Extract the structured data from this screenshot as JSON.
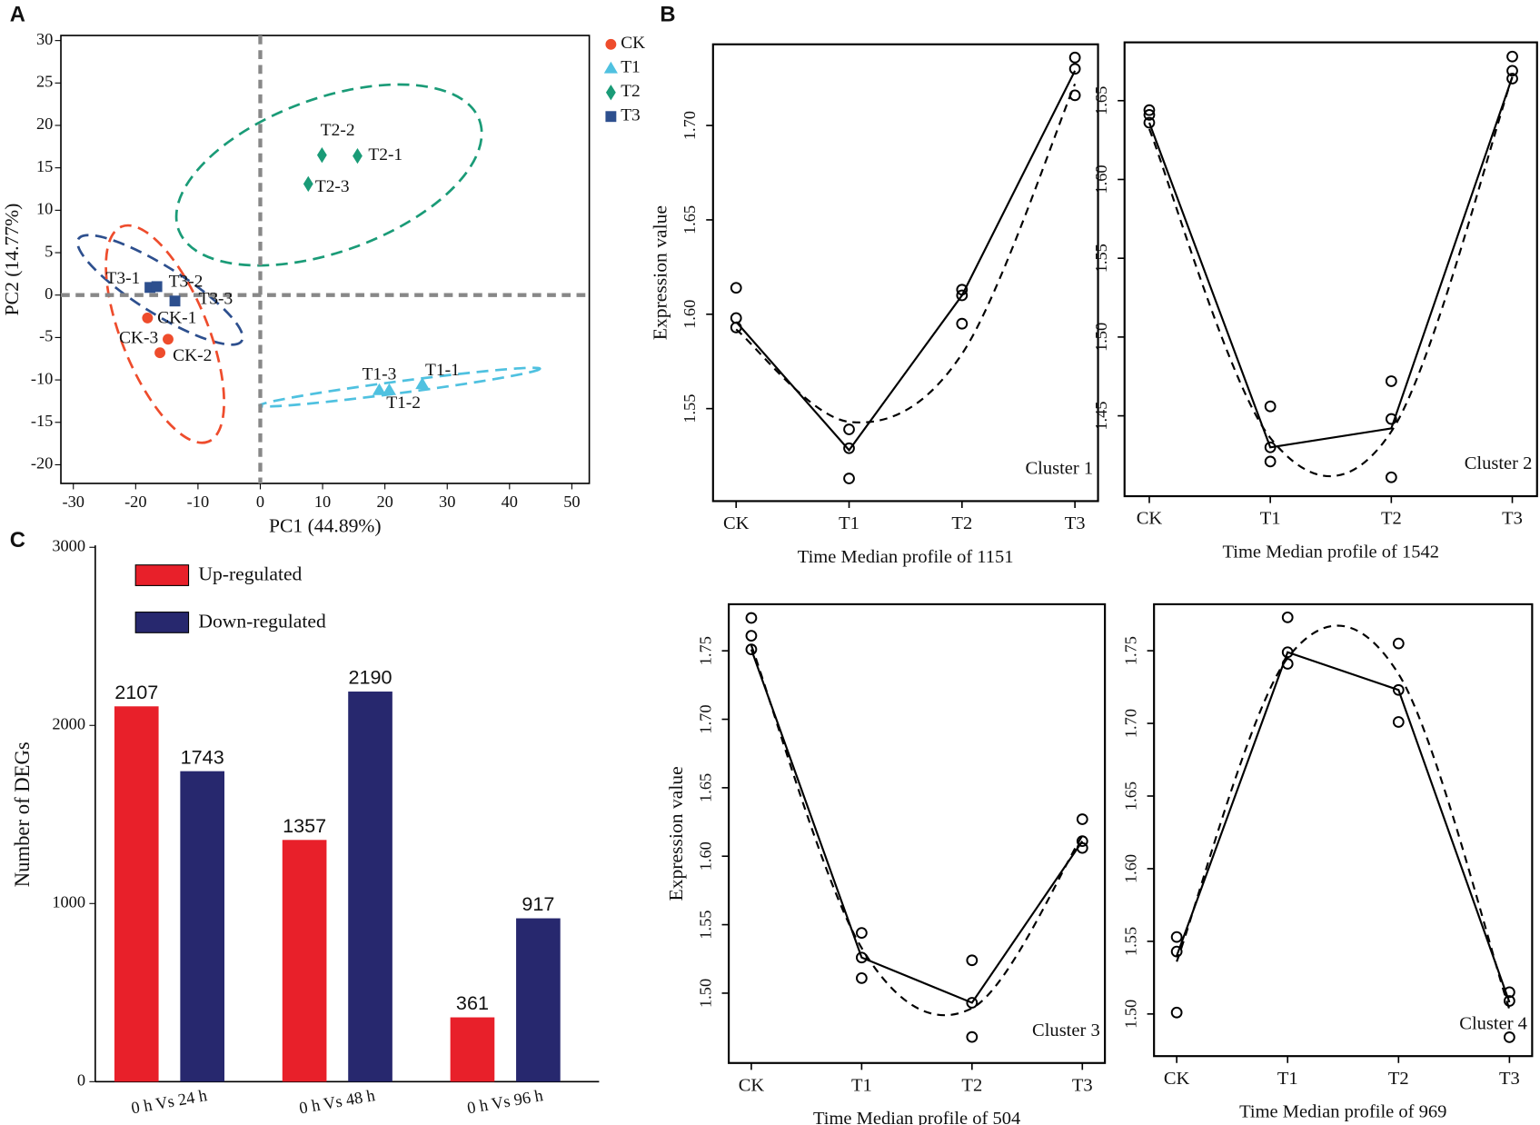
{
  "chart_data": [
    {
      "type": "scatter",
      "panel": "A",
      "xlabel": "PC1 (44.89%)",
      "ylabel": "PC2 (14.77%)",
      "xlim": [
        -32,
        52.8
      ],
      "ylim": [
        -22.2,
        30.6
      ],
      "xticks": [
        -30,
        -20,
        -10,
        0,
        10,
        20,
        30,
        40,
        50
      ],
      "yticks": [
        -20,
        -15,
        -10,
        -5,
        0,
        5,
        10,
        15,
        20,
        25,
        30
      ],
      "legend": "outside-right",
      "series": [
        {
          "name": "CK",
          "color": "#ee4c2c",
          "marker": "circle",
          "x": [
            -18.1,
            -16.1,
            -14.8
          ],
          "values": [
            -2.7,
            -6.8,
            -5.2
          ],
          "labels": [
            "CK-1",
            "CK-2",
            "CK-3"
          ]
        },
        {
          "name": "T1",
          "color": "#4fc1e0",
          "marker": "triangle",
          "x": [
            26,
            20.7,
            19.1
          ],
          "values": [
            -10.5,
            -11.2,
            -11.2
          ],
          "labels": [
            "T1-1",
            "T1-2",
            "T1-3"
          ]
        },
        {
          "name": "T2",
          "color": "#1a9b77",
          "marker": "diamond",
          "x": [
            15.6,
            9.9,
            7.7
          ],
          "values": [
            16.4,
            16.5,
            13.1
          ],
          "labels": [
            "T2-1",
            "T2-2",
            "T2-3"
          ]
        },
        {
          "name": "T3",
          "color": "#2d4f8e",
          "marker": "square",
          "x": [
            -17.7,
            -16.6,
            -13.7
          ],
          "values": [
            0.9,
            1.0,
            -0.7
          ],
          "labels": [
            "T3-1",
            "T3-2",
            "T3-3"
          ]
        }
      ]
    },
    {
      "type": "line",
      "panel": "B",
      "annotation": "Cluster 1",
      "xlabel": "Time Median profile of 1151",
      "ylabel": "Expression value",
      "categories": [
        "CK",
        "T1",
        "T2",
        "T3"
      ],
      "ylim": [
        1.501,
        1.743
      ],
      "yticks": [
        1.55,
        {
          "value": 1.6,
          "label": "1.60"
        },
        1.65,
        {
          "value": 1.7,
          "label": "1.70"
        }
      ],
      "series": [
        {
          "color": "#000000",
          "style": "solid",
          "values": [
            1.596,
            1.528,
            1.61,
            1.729
          ]
        },
        {
          "color": "#000000",
          "style": "dashed",
          "smooth": true,
          "values": [
            1.592,
            1.543,
            1.579,
            1.722
          ]
        }
      ],
      "replicates": [
        [
          1.614,
          1.598,
          1.593
        ],
        [
          1.539,
          1.529,
          1.513
        ],
        [
          1.613,
          1.61,
          1.595
        ],
        [
          1.736,
          1.73,
          1.716
        ]
      ]
    },
    {
      "type": "line",
      "annotation": "Cluster 2",
      "xlabel": "Time Median profile of 1542",
      "categories": [
        "CK",
        "T1",
        "T2",
        "T3"
      ],
      "ylim": [
        1.399,
        1.687
      ],
      "yticks": [
        1.45,
        {
          "value": 1.5,
          "label": "1.50"
        },
        1.55,
        {
          "value": 1.6,
          "label": "1.60"
        },
        1.65
      ],
      "series": [
        {
          "color": "#000000",
          "style": "solid",
          "values": [
            1.636,
            1.43,
            1.442,
            1.665
          ]
        },
        {
          "color": "#000000",
          "style": "dashed",
          "smooth": true,
          "values": [
            1.632,
            1.436,
            1.44,
            1.665
          ]
        }
      ],
      "replicates": [
        [
          1.644,
          1.641,
          1.636
        ],
        [
          1.456,
          1.43,
          1.421
        ],
        [
          1.472,
          1.448,
          1.411
        ],
        [
          1.678,
          1.669,
          1.664
        ]
      ]
    },
    {
      "type": "line",
      "annotation": "Cluster 3",
      "xlabel": "Time Median profile of 504",
      "ylabel": "Expression value",
      "categories": [
        "CK",
        "T1",
        "T2",
        "T3"
      ],
      "ylim": [
        1.449,
        1.784
      ],
      "yticks": [
        {
          "value": 1.5,
          "label": "1.50"
        },
        1.55,
        {
          "value": 1.6,
          "label": "1.60"
        },
        1.65,
        {
          "value": 1.7,
          "label": "1.70"
        },
        1.75
      ],
      "series": [
        {
          "color": "#000000",
          "style": "solid",
          "values": [
            1.751,
            1.526,
            1.493,
            1.611
          ]
        },
        {
          "color": "#000000",
          "style": "dashed",
          "smooth": true,
          "values": [
            1.754,
            1.533,
            1.489,
            1.615
          ]
        }
      ],
      "replicates": [
        [
          1.774,
          1.761,
          1.751
        ],
        [
          1.544,
          1.526,
          1.511
        ],
        [
          1.524,
          1.493,
          1.468
        ],
        [
          1.627,
          1.611,
          1.606
        ]
      ]
    },
    {
      "type": "line",
      "annotation": "Cluster 4",
      "xlabel": "Time Median profile of 969",
      "categories": [
        "CK",
        "T1",
        "T2",
        "T3"
      ],
      "ylim": [
        1.471,
        1.782
      ],
      "yticks": [
        {
          "value": 1.5,
          "label": "1.50"
        },
        1.55,
        {
          "value": 1.6,
          "label": "1.60"
        },
        1.65,
        {
          "value": 1.7,
          "label": "1.70"
        },
        1.75
      ],
      "series": [
        {
          "color": "#000000",
          "style": "solid",
          "values": [
            1.54,
            1.749,
            1.723,
            1.508
          ]
        },
        {
          "color": "#000000",
          "style": "dashed",
          "smooth": true,
          "values": [
            1.536,
            1.745,
            1.734,
            1.503
          ]
        }
      ],
      "replicates": [
        [
          1.553,
          1.543,
          1.501
        ],
        [
          1.773,
          1.749,
          1.741
        ],
        [
          1.755,
          1.723,
          1.701
        ],
        [
          1.515,
          1.509,
          1.484
        ]
      ]
    },
    {
      "type": "bar",
      "panel": "C",
      "ylabel": "Number of DEGs",
      "categories": [
        "0 h Vs 24 h",
        "0 h Vs 48 h",
        "0 h Vs 96 h"
      ],
      "ylim": [
        0,
        3000
      ],
      "yticks": [
        0,
        1000,
        2000,
        3000
      ],
      "legend": "top-left",
      "series": [
        {
          "name": "Up-regulated",
          "color": "#e8202a",
          "values": [
            2107,
            1357,
            361
          ]
        },
        {
          "name": "Down-regulated",
          "color": "#27286e",
          "values": [
            1743,
            2190,
            917
          ]
        }
      ]
    }
  ]
}
